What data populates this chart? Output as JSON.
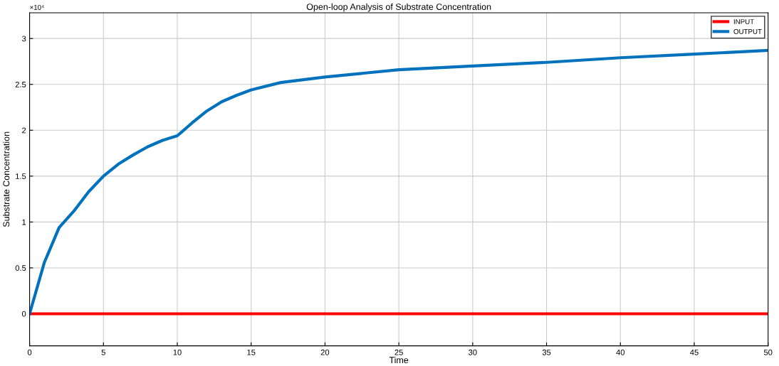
{
  "chart_data": {
    "type": "line",
    "title": "Open-loop Analysis of Substrate Concentration",
    "xlabel": "Time",
    "ylabel": "Substrate Concentration",
    "annotations": [
      "×10⁴"
    ],
    "x": [
      0,
      1,
      2,
      3,
      4,
      5,
      6,
      7,
      8,
      9,
      10,
      11,
      12,
      13,
      14,
      15,
      17,
      20,
      25,
      30,
      35,
      40,
      45,
      50
    ],
    "series": [
      {
        "name": "INPUT",
        "color": "#ff0000",
        "values": [
          0,
          0,
          0,
          0,
          0,
          0,
          0,
          0,
          0,
          0,
          0,
          0,
          0,
          0,
          0,
          0,
          0,
          0,
          0,
          0,
          0,
          0,
          0,
          0
        ]
      },
      {
        "name": "OUTPUT",
        "color": "#0072bd",
        "values": [
          0,
          0.56,
          0.94,
          1.12,
          1.33,
          1.5,
          1.63,
          1.73,
          1.82,
          1.89,
          1.94,
          2.08,
          2.21,
          2.31,
          2.38,
          2.44,
          2.52,
          2.58,
          2.66,
          2.7,
          2.74,
          2.79,
          2.83,
          2.87
        ]
      }
    ],
    "xlim": [
      0,
      50
    ],
    "xticks": [
      0,
      5,
      10,
      15,
      20,
      25,
      30,
      35,
      40,
      45,
      50
    ],
    "ylim": [
      -0.35,
      3.28
    ],
    "yticks": [
      0,
      0.5,
      1,
      1.5,
      2,
      2.5,
      3
    ],
    "grid": true,
    "legend": "top right"
  }
}
